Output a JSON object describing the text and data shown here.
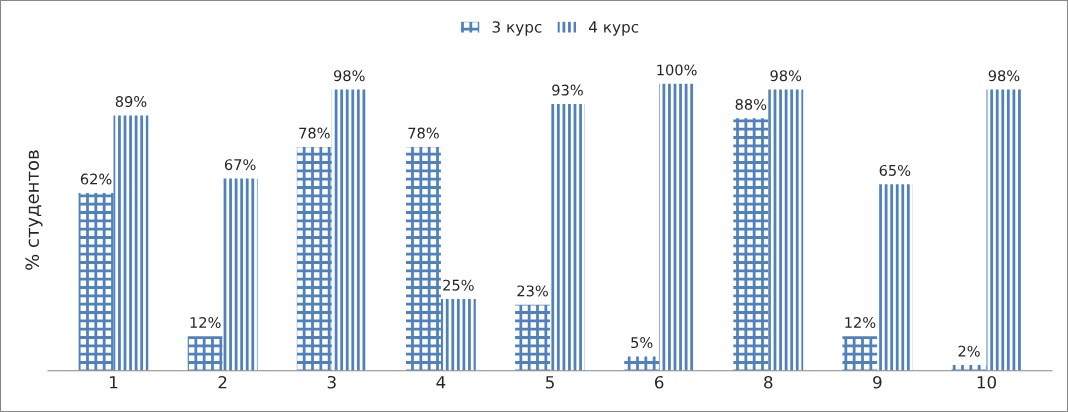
{
  "chart_data": {
    "type": "bar",
    "ylabel": "% студентов",
    "categories": [
      "1",
      "2",
      "3",
      "4",
      "5",
      "6",
      "8",
      "9",
      "10"
    ],
    "series": [
      {
        "name": "3 курс",
        "color": "#4f81bd",
        "values": [
          62,
          12,
          78,
          78,
          23,
          5,
          88,
          12,
          2
        ],
        "value_labels": [
          "62%",
          "12%",
          "78%",
          "78%",
          "23%",
          "5%",
          "88%",
          "12%",
          "2%"
        ]
      },
      {
        "name": "4 курс",
        "color": "#4f81bd",
        "values": [
          89,
          67,
          98,
          25,
          93,
          100,
          98,
          65,
          98
        ],
        "value_labels": [
          "89%",
          "67%",
          "98%",
          "25%",
          "93%",
          "100%",
          "98%",
          "65%",
          "98%"
        ]
      }
    ],
    "legend": "top",
    "grid": false
  }
}
